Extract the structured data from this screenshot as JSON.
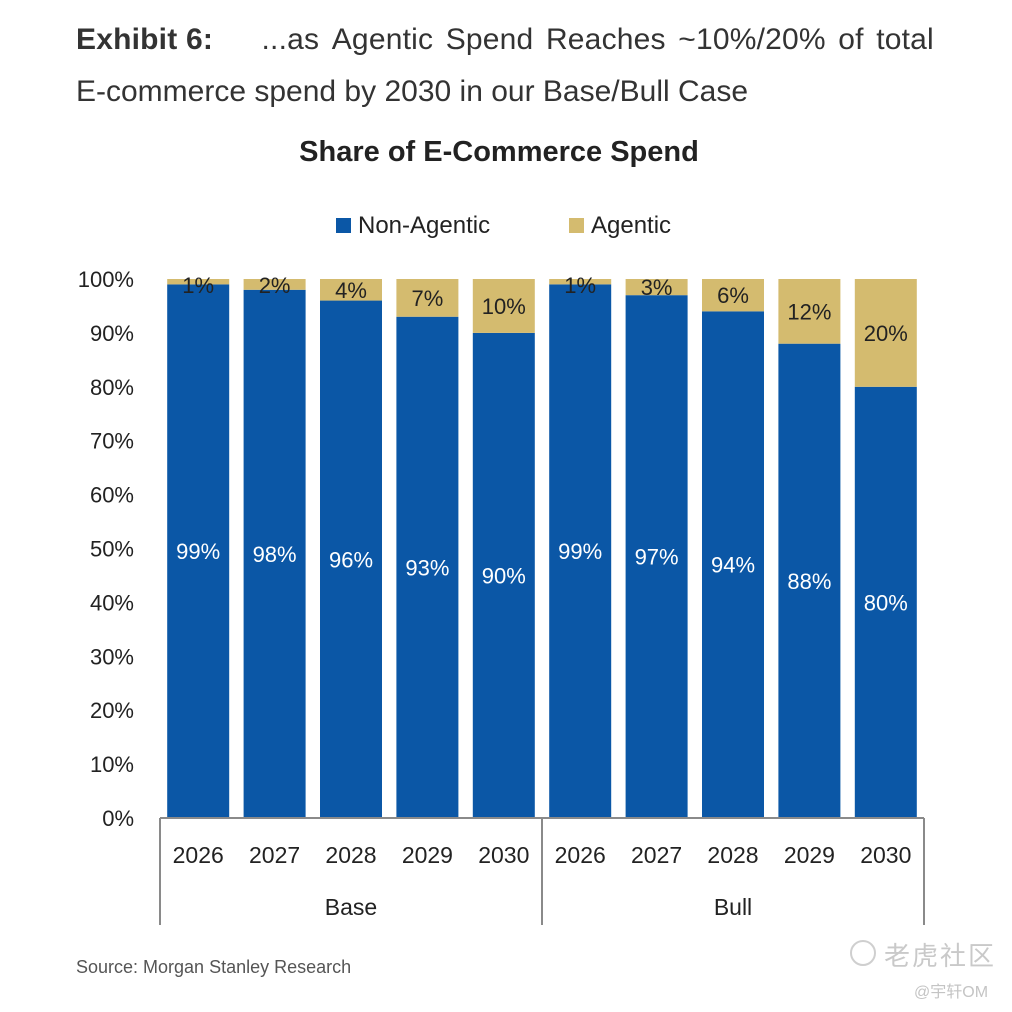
{
  "heading": {
    "exhibit_label": "Exhibit 6:",
    "line1_words": [
      "...as",
      "Agentic",
      "Spend",
      "Reaches",
      "~10%/20%",
      "of",
      "total"
    ],
    "line2": "E-commerce spend by 2030 in our Base/Bull Case"
  },
  "source": "Source: Morgan Stanley Research",
  "watermark": {
    "brand": "老虎社区",
    "handle": "@宇轩OM"
  },
  "colors": {
    "non_agentic": "#0b57a6",
    "agentic": "#d4bb6f",
    "axis": "#8a8a8a",
    "text": "#222222",
    "label_on_blue": "#ffffff"
  },
  "chart_data": {
    "type": "bar",
    "stacked": true,
    "title": "Share of E-Commerce Spend",
    "xlabel": "",
    "ylabel": "",
    "ylim": [
      0,
      100
    ],
    "yticks": [
      0,
      10,
      20,
      30,
      40,
      50,
      60,
      70,
      80,
      90,
      100
    ],
    "ytick_labels": [
      "0%",
      "10%",
      "20%",
      "30%",
      "40%",
      "50%",
      "60%",
      "70%",
      "80%",
      "90%",
      "100%"
    ],
    "grid": false,
    "legend": {
      "position": "top-center",
      "entries": [
        "Non-Agentic",
        "Agentic"
      ]
    },
    "groups": [
      {
        "name": "Base",
        "categories": [
          "2026",
          "2027",
          "2028",
          "2029",
          "2030"
        ]
      },
      {
        "name": "Bull",
        "categories": [
          "2026",
          "2027",
          "2028",
          "2029",
          "2030"
        ]
      }
    ],
    "categories": [
      "2026",
      "2027",
      "2028",
      "2029",
      "2030",
      "2026",
      "2027",
      "2028",
      "2029",
      "2030"
    ],
    "series": [
      {
        "name": "Non-Agentic",
        "values": [
          99,
          98,
          96,
          93,
          90,
          99,
          97,
          94,
          88,
          80
        ],
        "labels": [
          "99%",
          "98%",
          "96%",
          "93%",
          "90%",
          "99%",
          "97%",
          "94%",
          "88%",
          "80%"
        ]
      },
      {
        "name": "Agentic",
        "values": [
          1,
          2,
          4,
          7,
          10,
          1,
          3,
          6,
          12,
          20
        ],
        "labels": [
          "1%",
          "2%",
          "4%",
          "7%",
          "10%",
          "1%",
          "3%",
          "6%",
          "12%",
          "20%"
        ]
      }
    ]
  }
}
